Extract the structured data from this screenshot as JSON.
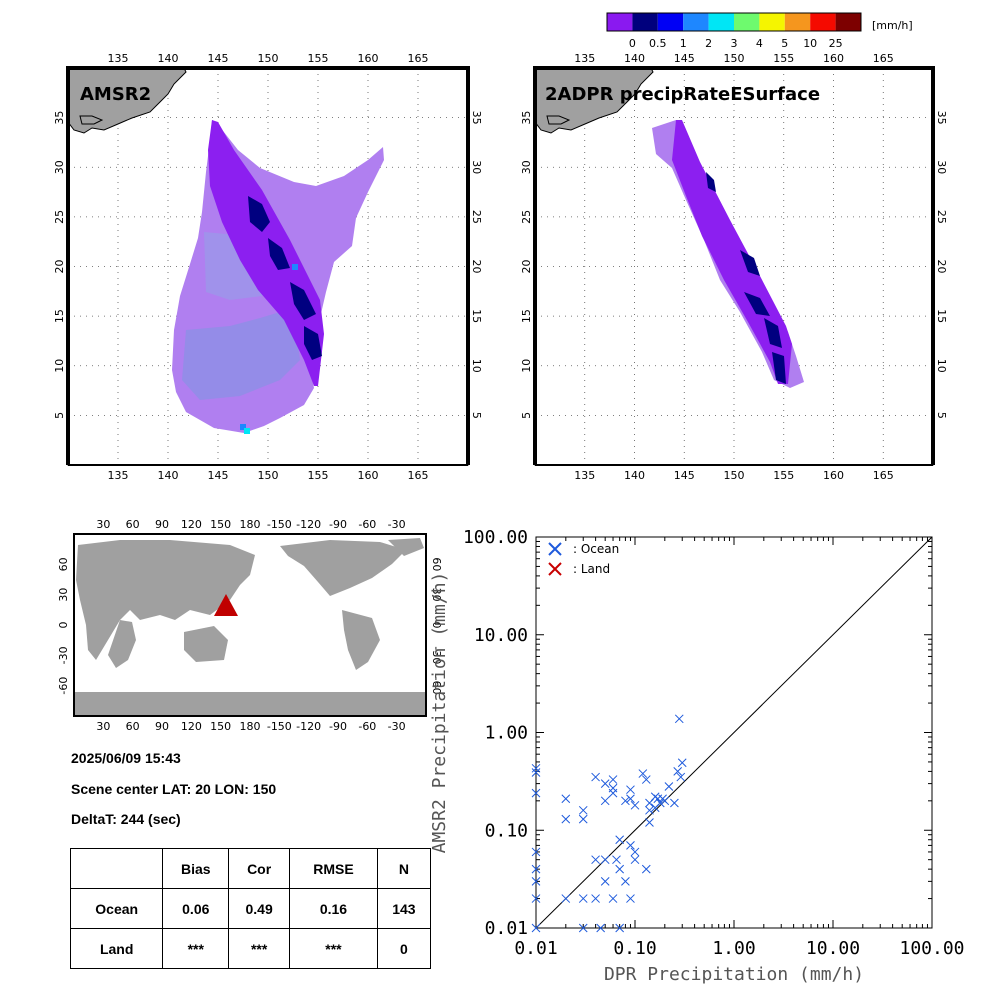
{
  "colorbar": {
    "unit": "[mm/h]",
    "colors": [
      "#8a19f0",
      "#00007d",
      "#0000f5",
      "#1e87ff",
      "#00e6f5",
      "#6efa6e",
      "#f5f500",
      "#f5961e",
      "#f50a00",
      "#7d0000"
    ],
    "labels": [
      "0",
      "0.5",
      "1",
      "2",
      "3",
      "4",
      "5",
      "10",
      "25"
    ]
  },
  "maps": [
    {
      "title": "AMSR2",
      "lon_ticks": [
        "135",
        "140",
        "145",
        "150",
        "155",
        "160",
        "165"
      ],
      "lat_ticks": [
        "5",
        "10",
        "15",
        "20",
        "25",
        "30",
        "35"
      ]
    },
    {
      "title": "2ADPR precipRateESurface",
      "lon_ticks": [
        "135",
        "140",
        "145",
        "150",
        "155",
        "160",
        "165"
      ],
      "lat_ticks": [
        "5",
        "10",
        "15",
        "20",
        "25",
        "30",
        "35"
      ]
    }
  ],
  "world_map": {
    "top_lon_ticks": [
      "30",
      "60",
      "90",
      "120",
      "150",
      "180",
      "-150",
      "-120",
      "-90",
      "-60",
      "-30"
    ],
    "bottom_lon_ticks": [
      "30",
      "60",
      "90",
      "120",
      "150",
      "180",
      "-150",
      "-120",
      "-90",
      "-60",
      "-30"
    ],
    "lat_ticks": [
      "60",
      "30",
      "0",
      "-30",
      "-60"
    ],
    "scene_marker": {
      "lat": 20,
      "lon": 150,
      "color": "#c00000"
    },
    "land_color": "#a0a0a0"
  },
  "info": {
    "datetime": "2025/06/09 15:43",
    "scene_center": "Scene center LAT: 20   LON: 150",
    "delta_t": "DeltaT:  244 (sec)"
  },
  "stats_table": {
    "headers": [
      "",
      "Bias",
      "Cor",
      "RMSE",
      "N"
    ],
    "rows": [
      [
        "Ocean",
        "0.06",
        "0.49",
        "0.16",
        "143"
      ],
      [
        "Land",
        "***",
        "***",
        "***",
        "0"
      ]
    ]
  },
  "chart_data": {
    "type": "scatter",
    "x_scale": "log",
    "y_scale": "log",
    "xlim": [
      0.01,
      100
    ],
    "ylim": [
      0.01,
      100
    ],
    "xlabel": "DPR Precipitation (mm/h)",
    "ylabel": "AMSR2 Precipitation (mm/h)",
    "tick_labels": [
      "0.01",
      "0.10",
      "1.00",
      "10.00",
      "100.00"
    ],
    "legend": [
      {
        "label": ": Ocean",
        "color": "#1e5adc"
      },
      {
        "label": ": Land",
        "color": "#c80000"
      }
    ],
    "legend_position": "top-left",
    "one_to_one_line": true,
    "series": [
      {
        "name": ": Ocean",
        "color": "#1e5adc",
        "points": [
          [
            0.01,
            0.43
          ],
          [
            0.01,
            0.39
          ],
          [
            0.01,
            0.24
          ],
          [
            0.01,
            0.06
          ],
          [
            0.01,
            0.04
          ],
          [
            0.01,
            0.03
          ],
          [
            0.01,
            0.02
          ],
          [
            0.01,
            0.01
          ],
          [
            0.02,
            0.21
          ],
          [
            0.02,
            0.13
          ],
          [
            0.02,
            0.02
          ],
          [
            0.03,
            0.16
          ],
          [
            0.03,
            0.13
          ],
          [
            0.03,
            0.02
          ],
          [
            0.03,
            0.01
          ],
          [
            0.04,
            0.35
          ],
          [
            0.04,
            0.05
          ],
          [
            0.04,
            0.02
          ],
          [
            0.045,
            0.01
          ],
          [
            0.05,
            0.3
          ],
          [
            0.05,
            0.2
          ],
          [
            0.05,
            0.05
          ],
          [
            0.05,
            0.03
          ],
          [
            0.06,
            0.33
          ],
          [
            0.06,
            0.27
          ],
          [
            0.06,
            0.24
          ],
          [
            0.06,
            0.02
          ],
          [
            0.065,
            0.05
          ],
          [
            0.07,
            0.08
          ],
          [
            0.07,
            0.04
          ],
          [
            0.07,
            0.01
          ],
          [
            0.08,
            0.2
          ],
          [
            0.08,
            0.03
          ],
          [
            0.09,
            0.26
          ],
          [
            0.09,
            0.21
          ],
          [
            0.09,
            0.07
          ],
          [
            0.09,
            0.02
          ],
          [
            0.1,
            0.18
          ],
          [
            0.1,
            0.06
          ],
          [
            0.1,
            0.05
          ],
          [
            0.12,
            0.38
          ],
          [
            0.13,
            0.33
          ],
          [
            0.13,
            0.04
          ],
          [
            0.14,
            0.19
          ],
          [
            0.14,
            0.16
          ],
          [
            0.14,
            0.12
          ],
          [
            0.16,
            0.22
          ],
          [
            0.16,
            0.17
          ],
          [
            0.17,
            0.21
          ],
          [
            0.18,
            0.19
          ],
          [
            0.19,
            0.21
          ],
          [
            0.2,
            0.2
          ],
          [
            0.22,
            0.28
          ],
          [
            0.25,
            0.19
          ],
          [
            0.27,
            0.4
          ],
          [
            0.29,
            0.35
          ],
          [
            0.3,
            0.49
          ],
          [
            0.28,
            1.38
          ]
        ]
      },
      {
        "name": ": Land",
        "color": "#c80000",
        "points": []
      }
    ]
  }
}
